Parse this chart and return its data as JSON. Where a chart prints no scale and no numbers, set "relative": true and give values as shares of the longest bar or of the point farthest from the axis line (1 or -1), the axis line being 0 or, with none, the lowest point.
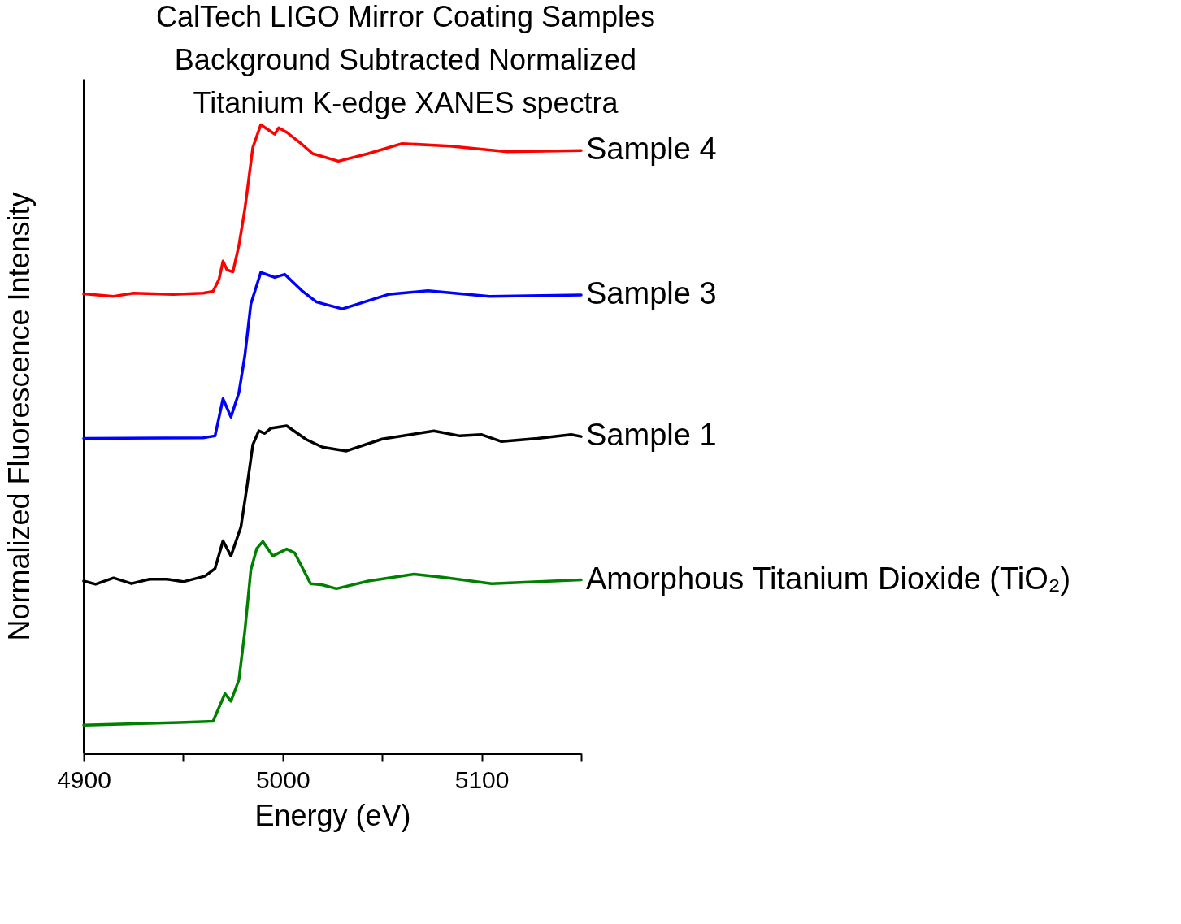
{
  "chart_data": {
    "type": "line",
    "title": "CalTech LIGO Mirror Coating Samples\nBackground Subtracted Normalized\nTitanium K-edge XANES spectra",
    "xlabel": "Energy (eV)",
    "ylabel": "Normalized Fluorescence Intensity",
    "relative": true,
    "grid": false,
    "marker": "none",
    "line_style": "solid",
    "xlim": [
      4900,
      5150
    ],
    "xticks": [
      4900,
      {
        "value": 4950,
        "label": null
      },
      5000,
      {
        "value": 5050,
        "label": null
      },
      5100,
      {
        "value": 5150,
        "label": null
      }
    ],
    "series": [
      {
        "name": "Sample 4",
        "color": "#ff0000",
        "x": [
          4900,
          4915,
          4925,
          4945,
          4960,
          4965,
          4968,
          4970,
          4972,
          4975,
          4978,
          4981,
          4983,
          4985,
          4989,
          4996,
          4998,
          5002,
          5010,
          5015,
          5028,
          5043,
          5060,
          5084,
          5113,
          5150
        ],
        "values": [
          0.731,
          0.727,
          0.732,
          0.73,
          0.732,
          0.735,
          0.754,
          0.783,
          0.769,
          0.766,
          0.808,
          0.866,
          0.915,
          0.964,
          1.0,
          0.985,
          0.995,
          0.988,
          0.968,
          0.954,
          0.942,
          0.954,
          0.97,
          0.966,
          0.957,
          0.959
        ]
      },
      {
        "name": "Sample 3",
        "color": "#0000ff",
        "x": [
          4900,
          4960,
          4966,
          4970,
          4974,
          4978,
          4981,
          4984,
          4989,
          4996,
          5001,
          5010,
          5017,
          5030,
          5053,
          5073,
          5104,
          5150
        ],
        "values": [
          0.501,
          0.502,
          0.505,
          0.564,
          0.535,
          0.574,
          0.633,
          0.715,
          0.765,
          0.757,
          0.762,
          0.735,
          0.718,
          0.707,
          0.73,
          0.736,
          0.727,
          0.729
        ]
      },
      {
        "name": "Sample 1",
        "color": "#000000",
        "x": [
          4900,
          4906,
          4915,
          4924,
          4933,
          4942,
          4950,
          4961,
          4966,
          4970,
          4974,
          4979,
          4982,
          4985,
          4988,
          4991,
          4994,
          5002,
          5012,
          5020,
          5032,
          5050,
          5076,
          5089,
          5100,
          5110,
          5128,
          5145,
          5150
        ],
        "values": [
          0.274,
          0.269,
          0.279,
          0.27,
          0.277,
          0.277,
          0.273,
          0.282,
          0.294,
          0.338,
          0.314,
          0.36,
          0.423,
          0.491,
          0.513,
          0.509,
          0.517,
          0.521,
          0.499,
          0.487,
          0.481,
          0.5,
          0.513,
          0.505,
          0.507,
          0.496,
          0.501,
          0.507,
          0.504
        ]
      },
      {
        "name": "Amorphous Titanium Dioxide (TiO₂)",
        "color": "#008000",
        "x": [
          4900,
          4948,
          4965,
          4971,
          4974,
          4978,
          4981,
          4984,
          4987,
          4990,
          4995,
          5002,
          5006,
          5014,
          5020,
          5027,
          5043,
          5066,
          5081,
          5105,
          5150
        ],
        "values": [
          0.045,
          0.049,
          0.051,
          0.095,
          0.083,
          0.117,
          0.195,
          0.292,
          0.326,
          0.337,
          0.314,
          0.325,
          0.319,
          0.27,
          0.268,
          0.262,
          0.274,
          0.285,
          0.28,
          0.27,
          0.276
        ]
      }
    ]
  }
}
